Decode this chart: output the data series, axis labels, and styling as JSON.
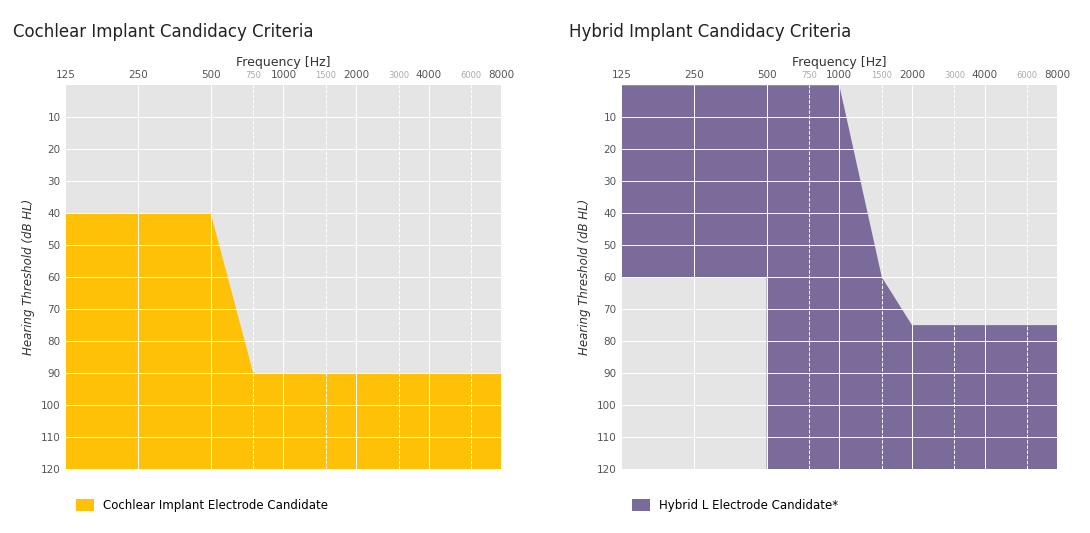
{
  "title1": "Cochlear Implant Candidacy Criteria",
  "title2": "Hybrid Implant Candidacy Criteria",
  "freq_label": "Frequency [Hz]",
  "y_label": "Hearing Threshold (dB HL)",
  "x_ticks_all": [
    125,
    250,
    500,
    750,
    1000,
    1500,
    2000,
    3000,
    4000,
    6000,
    8000
  ],
  "x_ticks_minor": [
    750,
    1500,
    3000,
    6000
  ],
  "y_ticks": [
    10,
    20,
    30,
    40,
    50,
    60,
    70,
    80,
    90,
    100,
    110,
    120
  ],
  "y_min": 0,
  "y_max": 120,
  "bg_color": "#e5e5e5",
  "yellow_color": "#FFC107",
  "purple_color": "#7B6B9A",
  "legend1": "Cochlear Implant Electrode Candidate",
  "legend2": "Hybrid L Electrode Candidate*",
  "cochlear_poly": [
    [
      125,
      40
    ],
    [
      500,
      40
    ],
    [
      750,
      90
    ],
    [
      8000,
      90
    ],
    [
      8000,
      120
    ],
    [
      125,
      120
    ]
  ],
  "hybrid_upper": [
    [
      125,
      0
    ],
    [
      1000,
      0
    ],
    [
      1500,
      60
    ],
    [
      500,
      60
    ],
    [
      125,
      60
    ]
  ],
  "hybrid_lower": [
    [
      500,
      60
    ],
    [
      1500,
      60
    ],
    [
      2000,
      75
    ],
    [
      8000,
      75
    ],
    [
      8000,
      120
    ],
    [
      500,
      120
    ]
  ]
}
